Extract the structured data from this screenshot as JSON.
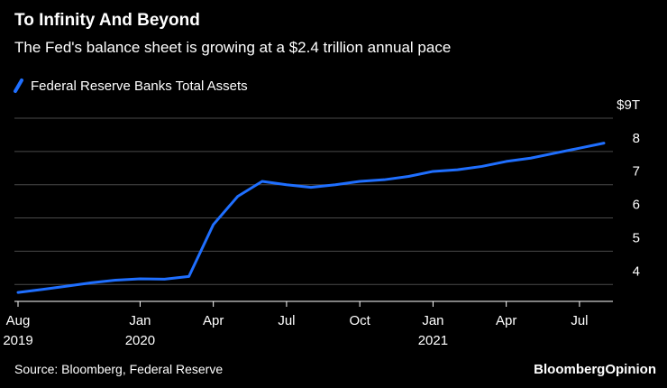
{
  "chart_data": {
    "type": "line",
    "title": "To Infinity And Beyond",
    "subtitle": "The Fed's balance sheet is growing at a $2.4 trillion annual pace",
    "source": "Source: Bloomberg, Federal Reserve",
    "brand": "BloombergOpinion",
    "x": [
      "2019-08",
      "2019-09",
      "2019-10",
      "2019-11",
      "2019-12",
      "2020-01",
      "2020-02",
      "2020-03",
      "2020-04",
      "2020-05",
      "2020-06",
      "2020-07",
      "2020-08",
      "2020-09",
      "2020-10",
      "2020-11",
      "2020-12",
      "2021-01",
      "2021-02",
      "2021-03",
      "2021-04",
      "2021-05",
      "2021-06",
      "2021-07",
      "2021-08"
    ],
    "series": [
      {
        "name": "Federal Reserve Banks Total Assets",
        "color": "#1f6fff",
        "values": [
          3.76,
          3.85,
          3.95,
          4.05,
          4.13,
          4.17,
          4.16,
          4.24,
          5.8,
          6.65,
          7.1,
          7.0,
          6.92,
          7.0,
          7.1,
          7.15,
          7.25,
          7.4,
          7.45,
          7.55,
          7.7,
          7.8,
          7.95,
          8.1,
          8.25
        ]
      }
    ],
    "xlim": [
      "2019-08",
      "2021-08"
    ],
    "xticks": [
      {
        "value": "2019-08",
        "label": "Aug"
      },
      {
        "value": "2020-01",
        "label": "Jan"
      },
      {
        "value": "2020-04",
        "label": "Apr"
      },
      {
        "value": "2020-07",
        "label": "Jul"
      },
      {
        "value": "2020-10",
        "label": "Oct"
      },
      {
        "value": "2021-01",
        "label": "Jan"
      },
      {
        "value": "2021-04",
        "label": "Apr"
      },
      {
        "value": "2021-07",
        "label": "Jul"
      }
    ],
    "xtick_years": [
      {
        "value": "2019-08",
        "label": "2019"
      },
      {
        "value": "2020-01",
        "label": "2020"
      },
      {
        "value": "2021-01",
        "label": "2021"
      }
    ],
    "ylim": [
      3.6,
      9
    ],
    "yticks": [
      {
        "value": 9,
        "label": "$9T"
      },
      8,
      7,
      6,
      5,
      4
    ],
    "grid": true
  }
}
